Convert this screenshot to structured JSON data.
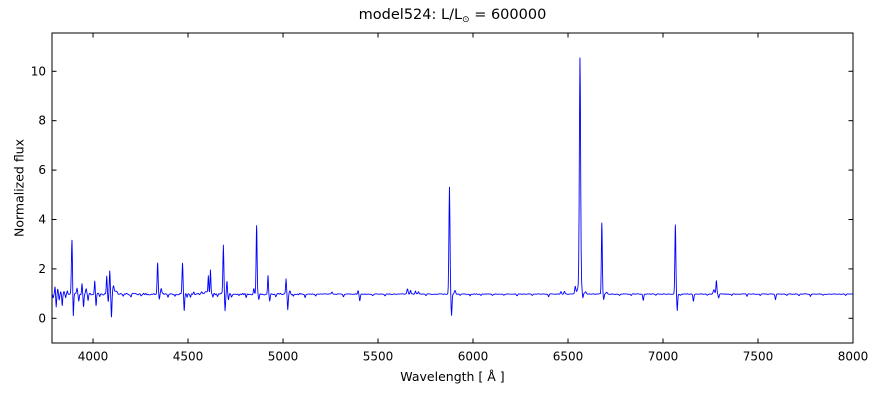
{
  "figure": {
    "title": {
      "prefix": "model524: L/L",
      "sub": "⊙",
      "suffix": " = 600000"
    }
  },
  "chart_data": {
    "type": "line",
    "title": "model524: L/L⊙ = 600000",
    "xlabel": "Wavelength [ Å ]",
    "ylabel": "Normalized flux",
    "line_color": "#0000ff",
    "frame_color": "#000000",
    "background": "#ffffff",
    "grid": false,
    "legend": null,
    "xlim": [
      3784,
      8000
    ],
    "ylim": [
      -1.0,
      11.55
    ],
    "x_ticks": [
      4000,
      4500,
      5000,
      5500,
      6000,
      6500,
      7000,
      7500,
      8000
    ],
    "y_ticks": [
      0,
      2,
      4,
      6,
      8,
      10
    ],
    "continuum_level": 0.98,
    "noise": {
      "amp_below_split": 0.035,
      "amp_above_split": 0.013,
      "split_wavelength": 5100,
      "lattice_angstrom": 6
    },
    "features_comment": "emission/absorption features as [wavelength_A, delta_flux_from_continuum, sigma_A]; notable lines: HeI+H8 3889 peak 3.16, Hdelta~4100 cluster, Hgamma 4340 peak 2.2, HeI 4471 peak 2.2, NIII/CIII 4610-4620 ~2.0, HeII 4686 peak 3.0, Hbeta 4861 peak 3.75, HeI 4921/5016, HeI 5876 peak 5.3, Halpha 6563 peak 10.5, HeI 6678 peak 3.85, HeI 7065 peak 3.8, HeI 7281 peak 1.55",
    "features": [
      [
        3790,
        -0.12,
        2
      ],
      [
        3800,
        0.28,
        2
      ],
      [
        3806,
        -0.52,
        2
      ],
      [
        3814,
        0.18,
        2
      ],
      [
        3822,
        -0.22,
        2
      ],
      [
        3830,
        0.12,
        2
      ],
      [
        3838,
        -0.46,
        2
      ],
      [
        3847,
        0.12,
        2
      ],
      [
        3856,
        -0.16,
        2
      ],
      [
        3865,
        0.1,
        2
      ],
      [
        3889,
        2.18,
        2.8
      ],
      [
        3896,
        -0.95,
        2.2
      ],
      [
        3916,
        0.26,
        2.5
      ],
      [
        3925,
        -0.28,
        2.2
      ],
      [
        3942,
        0.45,
        2.2
      ],
      [
        3950,
        -0.5,
        2.2
      ],
      [
        3964,
        0.22,
        2.5
      ],
      [
        3974,
        -0.25,
        2.2
      ],
      [
        4009,
        0.55,
        2.2
      ],
      [
        4016,
        -0.45,
        2.2
      ],
      [
        4035,
        -0.12,
        2.5
      ],
      [
        4072,
        0.75,
        2.2
      ],
      [
        4080,
        -0.3,
        1.8
      ],
      [
        4088,
        0.92,
        2.2
      ],
      [
        4097,
        -0.9,
        2.2
      ],
      [
        4108,
        0.35,
        3.5
      ],
      [
        4122,
        0.14,
        5
      ],
      [
        4160,
        -0.07,
        3
      ],
      [
        4200,
        -0.08,
        3
      ],
      [
        4252,
        -0.06,
        3
      ],
      [
        4340,
        1.25,
        2.5
      ],
      [
        4349,
        -0.22,
        2.2
      ],
      [
        4359,
        0.2,
        2.8
      ],
      [
        4395,
        -0.12,
        2.5
      ],
      [
        4432,
        -0.1,
        2.5
      ],
      [
        4471,
        1.24,
        2.5
      ],
      [
        4480,
        -0.68,
        2.2
      ],
      [
        4495,
        -0.16,
        2.5
      ],
      [
        4513,
        -0.12,
        2.5
      ],
      [
        4530,
        0.08,
        3
      ],
      [
        4572,
        0.06,
        4
      ],
      [
        4597,
        0.12,
        6
      ],
      [
        4607,
        0.72,
        2.2
      ],
      [
        4618,
        1.0,
        2.2
      ],
      [
        4631,
        -0.15,
        2.5
      ],
      [
        4655,
        -0.08,
        3
      ],
      [
        4686,
        1.98,
        2.5
      ],
      [
        4695,
        -0.68,
        2.2
      ],
      [
        4705,
        0.5,
        2.2
      ],
      [
        4713,
        -0.22,
        2.2
      ],
      [
        4729,
        -0.1,
        2.5
      ],
      [
        4768,
        -0.07,
        3
      ],
      [
        4806,
        -0.15,
        2.5
      ],
      [
        4846,
        0.22,
        2.5
      ],
      [
        4861,
        2.77,
        2.5
      ],
      [
        4873,
        -0.22,
        2.5
      ],
      [
        4921,
        0.72,
        2.2
      ],
      [
        4930,
        -0.26,
        2.2
      ],
      [
        4962,
        -0.07,
        3
      ],
      [
        5016,
        0.64,
        2.2
      ],
      [
        5025,
        -0.62,
        2.2
      ],
      [
        5037,
        0.12,
        3
      ],
      [
        5054,
        -0.1,
        2.5
      ],
      [
        5116,
        -0.13,
        2.5
      ],
      [
        5172,
        -0.08,
        2.5
      ],
      [
        5258,
        0.08,
        3
      ],
      [
        5318,
        -0.1,
        2.5
      ],
      [
        5395,
        0.14,
        2.5
      ],
      [
        5404,
        -0.26,
        2.5
      ],
      [
        5472,
        -0.07,
        3
      ],
      [
        5537,
        -0.06,
        3
      ],
      [
        5655,
        0.2,
        3
      ],
      [
        5671,
        0.16,
        2.5
      ],
      [
        5697,
        0.13,
        2.5
      ],
      [
        5713,
        0.11,
        2.5
      ],
      [
        5752,
        -0.05,
        3
      ],
      [
        5876,
        4.33,
        2.8
      ],
      [
        5887,
        -0.87,
        2.5
      ],
      [
        5905,
        0.16,
        3.5
      ],
      [
        5932,
        -0.05,
        3
      ],
      [
        5985,
        -0.08,
        2.5
      ],
      [
        6042,
        -0.06,
        3
      ],
      [
        6102,
        -0.06,
        3
      ],
      [
        6162,
        -0.05,
        3
      ],
      [
        6232,
        -0.06,
        3
      ],
      [
        6312,
        -0.05,
        3
      ],
      [
        6398,
        -0.1,
        2.5
      ],
      [
        6463,
        0.1,
        3
      ],
      [
        6481,
        0.12,
        3
      ],
      [
        6538,
        0.3,
        3
      ],
      [
        6563,
        9.1,
        3.2
      ],
      [
        6563,
        0.45,
        10
      ],
      [
        6578,
        -0.3,
        2.5
      ],
      [
        6593,
        0.1,
        3.5
      ],
      [
        6678,
        2.87,
        2.4
      ],
      [
        6688,
        -0.22,
        2.2
      ],
      [
        6703,
        0.08,
        3
      ],
      [
        6772,
        -0.05,
        3
      ],
      [
        6832,
        -0.05,
        3
      ],
      [
        6896,
        -0.26,
        2.5
      ],
      [
        6962,
        -0.05,
        3
      ],
      [
        7065,
        2.8,
        2.5
      ],
      [
        7075,
        -0.66,
        2.2
      ],
      [
        7092,
        -0.06,
        3
      ],
      [
        7160,
        -0.28,
        2.5
      ],
      [
        7232,
        -0.05,
        3
      ],
      [
        7268,
        0.16,
        4
      ],
      [
        7281,
        0.55,
        2.5
      ],
      [
        7293,
        -0.16,
        2.5
      ],
      [
        7362,
        -0.05,
        3
      ],
      [
        7442,
        -0.09,
        2.5
      ],
      [
        7512,
        -0.05,
        3
      ],
      [
        7592,
        -0.23,
        2.5
      ],
      [
        7652,
        -0.05,
        3
      ],
      [
        7716,
        -0.07,
        3
      ],
      [
        7776,
        -0.1,
        2.5
      ],
      [
        7842,
        -0.05,
        3
      ],
      [
        7962,
        -0.05,
        3
      ]
    ]
  }
}
